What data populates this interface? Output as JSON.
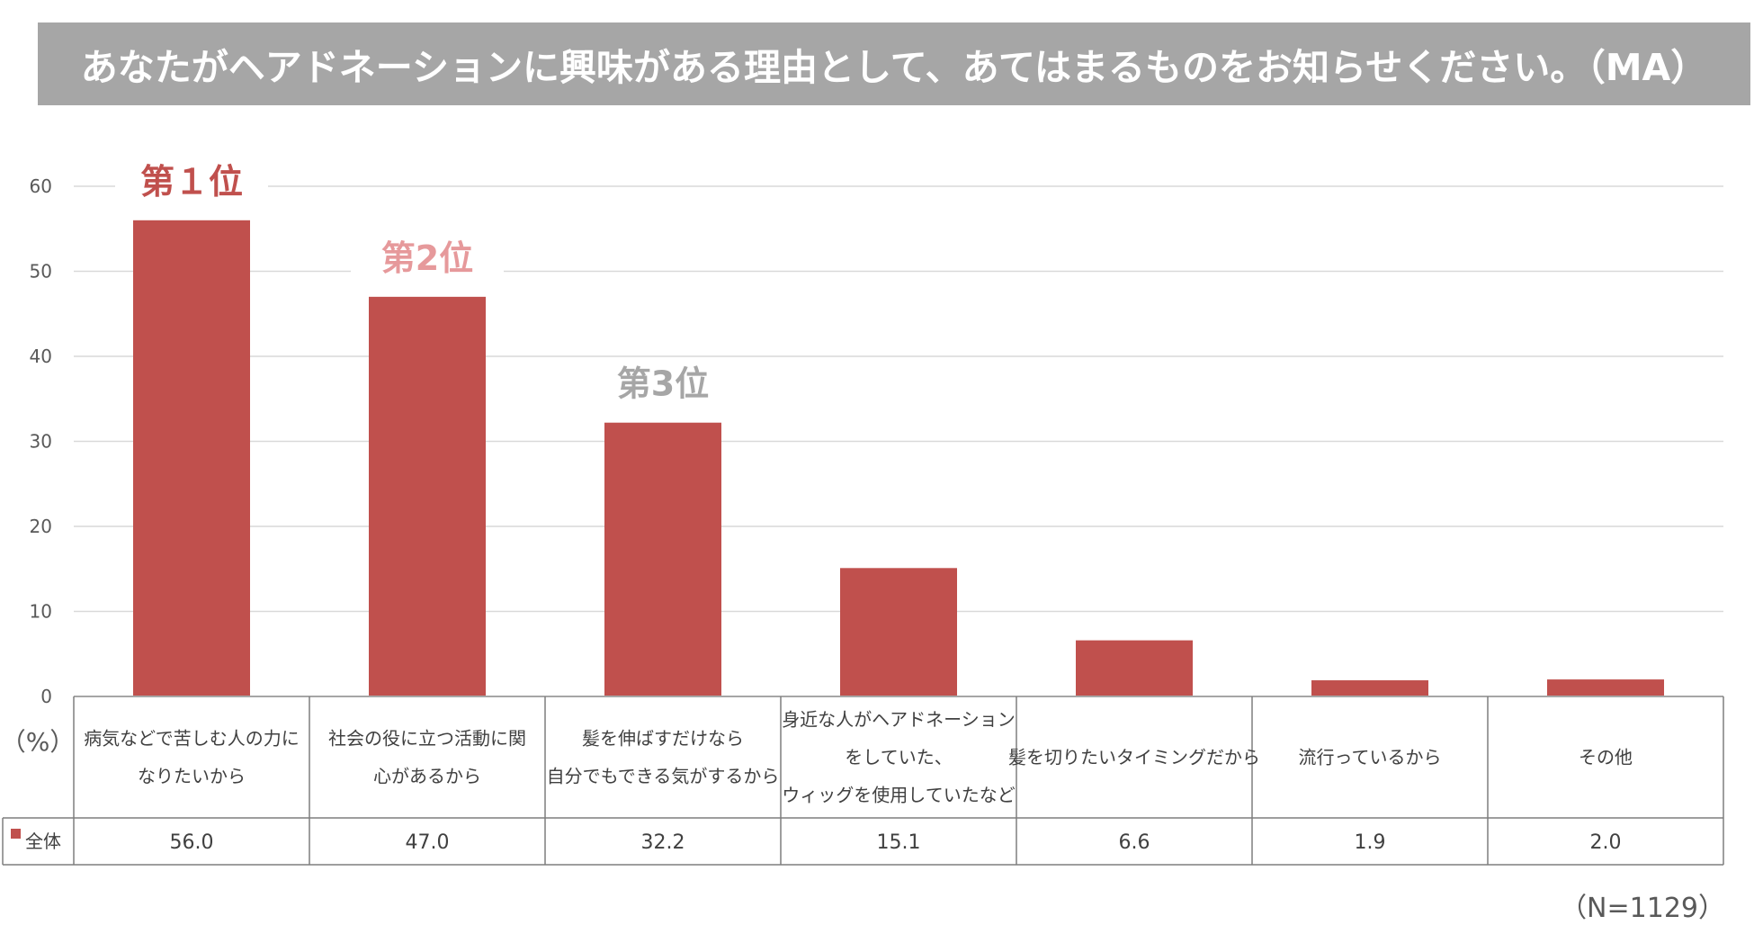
{
  "title": "あなたがヘアドネーションに興味がある理由として、あてはまるものをお知らせください。（MA）",
  "colors": {
    "bar": "#c0504d",
    "rank1": "#c0504d",
    "rank2": "#e6999b",
    "rank3": "#a6a6a6",
    "grid": "#d9d9d9"
  },
  "unit_label": "（%）",
  "sample_note": "（N=1129）",
  "chart_data": {
    "type": "bar",
    "categories": [
      [
        "病気などで苦しむ人の力に",
        "なりたいから"
      ],
      [
        "社会の役に立つ活動に関",
        "心があるから"
      ],
      [
        "髪を伸ばすだけなら",
        "自分でもできる気がするから"
      ],
      [
        "身近な人がヘアドネーション",
        "をしていた、",
        "ウィッグを使用していたなど"
      ],
      [
        "髪を切りたいタイミングだから"
      ],
      [
        "流行っているから"
      ],
      [
        "その他"
      ]
    ],
    "series": [
      {
        "name": "全体",
        "values": [
          56.0,
          47.0,
          32.2,
          15.1,
          6.6,
          1.9,
          2.0
        ]
      }
    ],
    "value_labels": [
      "56.0",
      "47.0",
      "32.2",
      "15.1",
      "6.6",
      "1.9",
      "2.0"
    ],
    "yticks": [
      0,
      10,
      20,
      30,
      40,
      50,
      60
    ],
    "ylim": [
      0,
      60
    ],
    "grid": true,
    "rank_labels": [
      {
        "index": 0,
        "text": "第１位"
      },
      {
        "index": 1,
        "text": "第2位"
      },
      {
        "index": 2,
        "text": "第3位"
      }
    ],
    "legend": "data-table"
  }
}
